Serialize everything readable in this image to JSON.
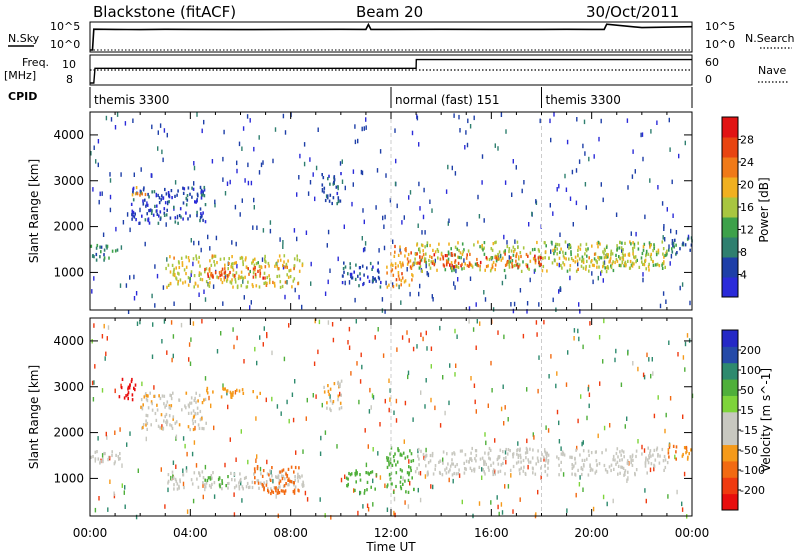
{
  "header": {
    "station": "Blackstone (fitACF)",
    "beam": "Beam 20",
    "date": "30/Oct/2011"
  },
  "top_labels": {
    "n_sky": "N.Sky",
    "n_search": "N.Search",
    "freq": "Freq.",
    "freq_unit": "[MHz]",
    "nave": "Nave",
    "cpid": "CPID",
    "nsky_tick_hi": "10^5",
    "nsky_tick_lo": "10^0",
    "nsearch_tick_hi": "10^5",
    "nsearch_tick_lo": "10^0",
    "freq_tick_hi": "10",
    "freq_tick_lo": "8",
    "nave_tick_hi": "60",
    "nave_tick_lo": "0"
  },
  "cpid_segments": [
    {
      "label": "themis 3300",
      "start_hour": 0
    },
    {
      "label": "normal (fast) 151",
      "start_hour": 12
    },
    {
      "label": "themis 3300",
      "start_hour": 18
    }
  ],
  "colors": {
    "power": [
      "#2b2bd9",
      "#1e3fa8",
      "#2f7f6f",
      "#3da14a",
      "#a8c640",
      "#f0b020",
      "#f07a18",
      "#e84410",
      "#e11313"
    ],
    "velocity": [
      "#e80d0d",
      "#ef3a10",
      "#f26a12",
      "#f59a1a",
      "#c8c8c0",
      "#c8c8c0",
      "#7ed43a",
      "#4faf3a",
      "#2e8a6e",
      "#254aa8",
      "#2428c6"
    ]
  },
  "chart_data": [
    {
      "type": "line",
      "title": "N.Sky / N.Search",
      "x_range": [
        0,
        24
      ],
      "y_scale": "log",
      "y_range": [
        1,
        100000
      ],
      "series": [
        {
          "name": "N.Sky",
          "style": "solid",
          "x": [
            0,
            0.1,
            0.15,
            1,
            2,
            3,
            4,
            6,
            8,
            10,
            11,
            11.1,
            11.2,
            12,
            14,
            16,
            18,
            19,
            20,
            20.5,
            20.6,
            22,
            24
          ],
          "y": [
            1,
            1,
            10000,
            9000,
            8500,
            9500,
            9000,
            8500,
            9000,
            9500,
            9000,
            80000,
            9000,
            9000,
            9500,
            9000,
            9000,
            9500,
            9000,
            9000,
            90000,
            20000,
            30000
          ]
        },
        {
          "name": "N.Search",
          "style": "dotted",
          "x": [
            0,
            24
          ],
          "y": [
            1,
            1
          ]
        }
      ]
    },
    {
      "type": "line",
      "title": "Freq. / Nave",
      "x_range": [
        0,
        24
      ],
      "freq_range": [
        8,
        11
      ],
      "nave_range": [
        0,
        60
      ],
      "series": [
        {
          "name": "Freq.",
          "units": "MHz",
          "style": "solid",
          "x": [
            0,
            0.15,
            0.2,
            13,
            13.01,
            24
          ],
          "y": [
            8,
            8,
            9.7,
            9.7,
            10.7,
            10.7
          ]
        },
        {
          "name": "Nave",
          "style": "dotted",
          "x": [
            0,
            12,
            12.01,
            18,
            18.01,
            24
          ],
          "y": [
            30,
            30,
            30,
            30,
            30,
            30
          ]
        }
      ]
    },
    {
      "type": "heatmap",
      "panel": "power",
      "xlabel": "",
      "ylabel": "Slant Range [km]",
      "x_range": [
        0,
        24
      ],
      "y_range": [
        180,
        4500
      ],
      "yticks": [
        1000,
        2000,
        3000,
        4000
      ],
      "colorbar_label": "Power [dB]",
      "colorbar_ticks": [
        4,
        8,
        12,
        16,
        20,
        24,
        28
      ],
      "colorbar_range": [
        0,
        32
      ],
      "features": [
        {
          "x": [
            0,
            1.2
          ],
          "y": [
            1300,
            1650
          ],
          "value": 10
        },
        {
          "x": [
            1.6,
            4.6
          ],
          "y": [
            2100,
            2900
          ],
          "value": 5
        },
        {
          "x": [
            1.6,
            2.2
          ],
          "y": [
            2700,
            2900
          ],
          "value": 20
        },
        {
          "x": [
            3,
            8.5
          ],
          "y": [
            700,
            1400
          ],
          "value": 18
        },
        {
          "x": [
            4.5,
            7
          ],
          "y": [
            900,
            1150
          ],
          "value": 26
        },
        {
          "x": [
            9.2,
            10
          ],
          "y": [
            2500,
            3200
          ],
          "value": 6
        },
        {
          "x": [
            10,
            11.6
          ],
          "y": [
            700,
            1250
          ],
          "value": 6
        },
        {
          "x": [
            11.8,
            12.9
          ],
          "y": [
            700,
            1600
          ],
          "value": 22
        },
        {
          "x": [
            12.9,
            23
          ],
          "y": [
            1050,
            1700
          ],
          "value": 16
        },
        {
          "x": [
            13,
            18
          ],
          "y": [
            1150,
            1450
          ],
          "value": 26
        },
        {
          "x": [
            19,
            22.5
          ],
          "y": [
            1100,
            1450
          ],
          "value": 18
        },
        {
          "x": [
            23,
            24
          ],
          "y": [
            1400,
            1800
          ],
          "value": 8
        }
      ]
    },
    {
      "type": "heatmap",
      "panel": "velocity",
      "xlabel": "Time UT",
      "ylabel": "Slant Range [km]",
      "x_range": [
        0,
        24
      ],
      "y_range": [
        180,
        4500
      ],
      "xticks": [
        "00:00",
        "04:00",
        "08:00",
        "12:00",
        "16:00",
        "20:00",
        "00:00"
      ],
      "yticks": [
        1000,
        2000,
        3000,
        4000
      ],
      "colorbar_label": "Velocity [m s^-1]",
      "colorbar_ticks": [
        200,
        100,
        50,
        15,
        -15,
        -50,
        -100,
        -200
      ],
      "features": [
        {
          "x": [
            0,
            1.2
          ],
          "y": [
            1300,
            1650
          ],
          "value": 0
        },
        {
          "x": [
            1.1,
            1.9
          ],
          "y": [
            2750,
            3200
          ],
          "value": -250
        },
        {
          "x": [
            2,
            4.6
          ],
          "y": [
            2100,
            2900
          ],
          "value": -10
        },
        {
          "x": [
            4.6,
            6.8
          ],
          "y": [
            2800,
            3000
          ],
          "value": -40
        },
        {
          "x": [
            3,
            8.5
          ],
          "y": [
            800,
            1200
          ],
          "value": 0
        },
        {
          "x": [
            4.5,
            5.5
          ],
          "y": [
            850,
            1100
          ],
          "value": 60
        },
        {
          "x": [
            6.5,
            8.3
          ],
          "y": [
            700,
            1300
          ],
          "value": -60
        },
        {
          "x": [
            9.3,
            10
          ],
          "y": [
            2500,
            3200
          ],
          "value": -10
        },
        {
          "x": [
            10.2,
            11.4
          ],
          "y": [
            700,
            1200
          ],
          "value": 60
        },
        {
          "x": [
            11.8,
            12.9
          ],
          "y": [
            700,
            1700
          ],
          "value": 70
        },
        {
          "x": [
            12.9,
            23
          ],
          "y": [
            1100,
            1700
          ],
          "value": 0
        },
        {
          "x": [
            23,
            24
          ],
          "y": [
            1450,
            1800
          ],
          "value": -50
        }
      ]
    }
  ]
}
